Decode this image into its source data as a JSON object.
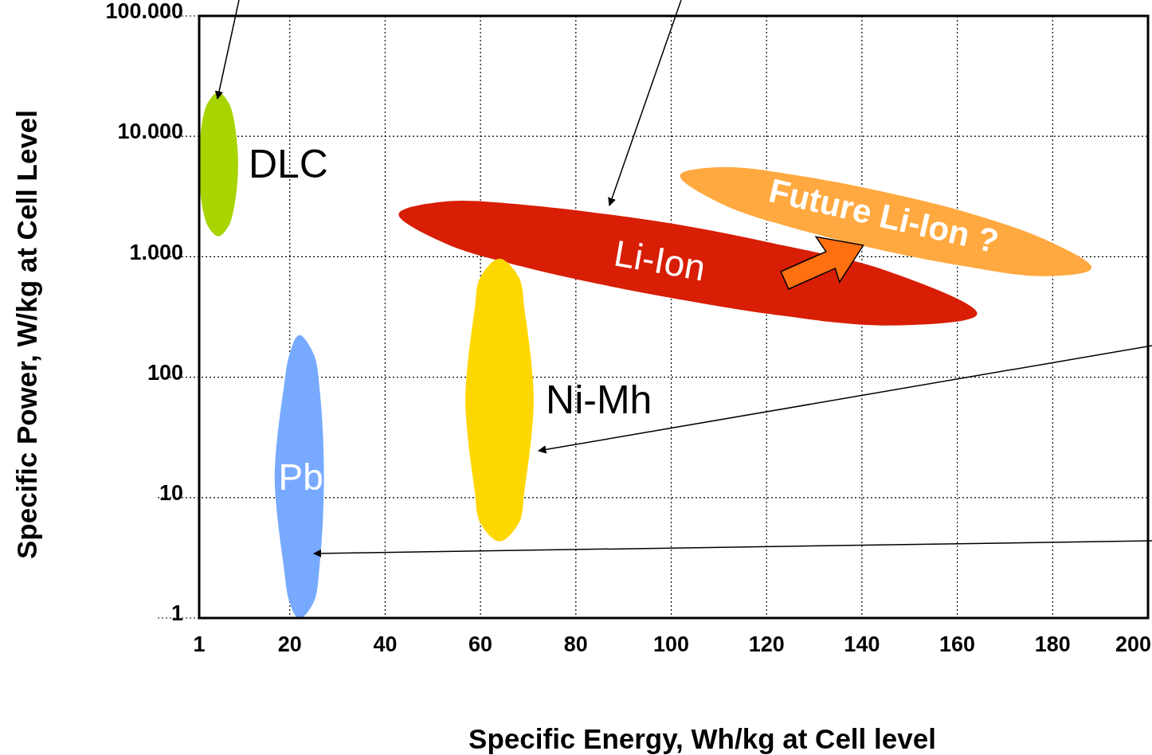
{
  "chart_data": {
    "type": "area",
    "xlabel": "Specific Energy, Wh/kg at Cell level",
    "ylabel": "Specific Power, W/kg at Cell Level",
    "log": "y",
    "grid": true,
    "legend": false,
    "marker": "none",
    "xlim": [
      1,
      200
    ],
    "xticks": [
      1,
      20,
      40,
      60,
      80,
      100,
      120,
      140,
      160,
      180,
      200
    ],
    "ylim": [
      1,
      100000
    ],
    "yticks": [
      {
        "value": 1,
        "label": "1"
      },
      {
        "value": 10,
        "label": "10"
      },
      {
        "value": 100,
        "label": "100"
      },
      {
        "value": 1000,
        "label": "1.000"
      },
      {
        "value": 10000,
        "label": "10.000"
      },
      {
        "value": 100000,
        "label": "100.000"
      }
    ],
    "series": [
      {
        "name": "DLC",
        "color": "#a8d400",
        "x": [
          1,
          2,
          3,
          5,
          7,
          8,
          9,
          8,
          7,
          5,
          3,
          2
        ],
        "values": [
          5900,
          14500,
          19000,
          22900,
          19000,
          14500,
          5900,
          2400,
          1800,
          1500,
          1800,
          2400
        ]
      },
      {
        "name": "Future Li-Ion ?",
        "color": "#ffa940",
        "x": [
          102,
          111,
          128,
          145,
          162,
          178,
          188,
          178,
          162,
          145,
          128,
          111
        ],
        "values": [
          4730,
          5480,
          4560,
          3380,
          2300,
          1390,
          810,
          700,
          840,
          1130,
          1660,
          2740
        ]
      },
      {
        "name": "Li-Ion",
        "color": "#d81e05",
        "x": [
          43,
          53,
          70,
          87,
          104,
          120,
          145,
          164,
          145,
          120,
          104,
          87,
          70,
          53
        ],
        "values": [
          2260,
          2840,
          2640,
          2210,
          1750,
          1310,
          757,
          336,
          273,
          343,
          434,
          580,
          820,
          1290
        ]
      },
      {
        "name": "Ni-Mh",
        "color": "#ffd700",
        "x": [
          57,
          59,
          60,
          64,
          68,
          69,
          71,
          69,
          68,
          64,
          60,
          59
        ],
        "values": [
          65,
          380,
          660,
          950,
          660,
          380,
          65,
          11,
          6.3,
          4.4,
          6.3,
          11
        ]
      },
      {
        "name": "Pb",
        "color": "#77aaff",
        "x": [
          17,
          19,
          20,
          22,
          25,
          26,
          27,
          26,
          25,
          22,
          20,
          19
        ],
        "values": [
          15,
          87,
          150,
          220,
          150,
          87,
          15,
          2.5,
          1.4,
          1,
          1.4,
          2.5
        ]
      }
    ]
  }
}
